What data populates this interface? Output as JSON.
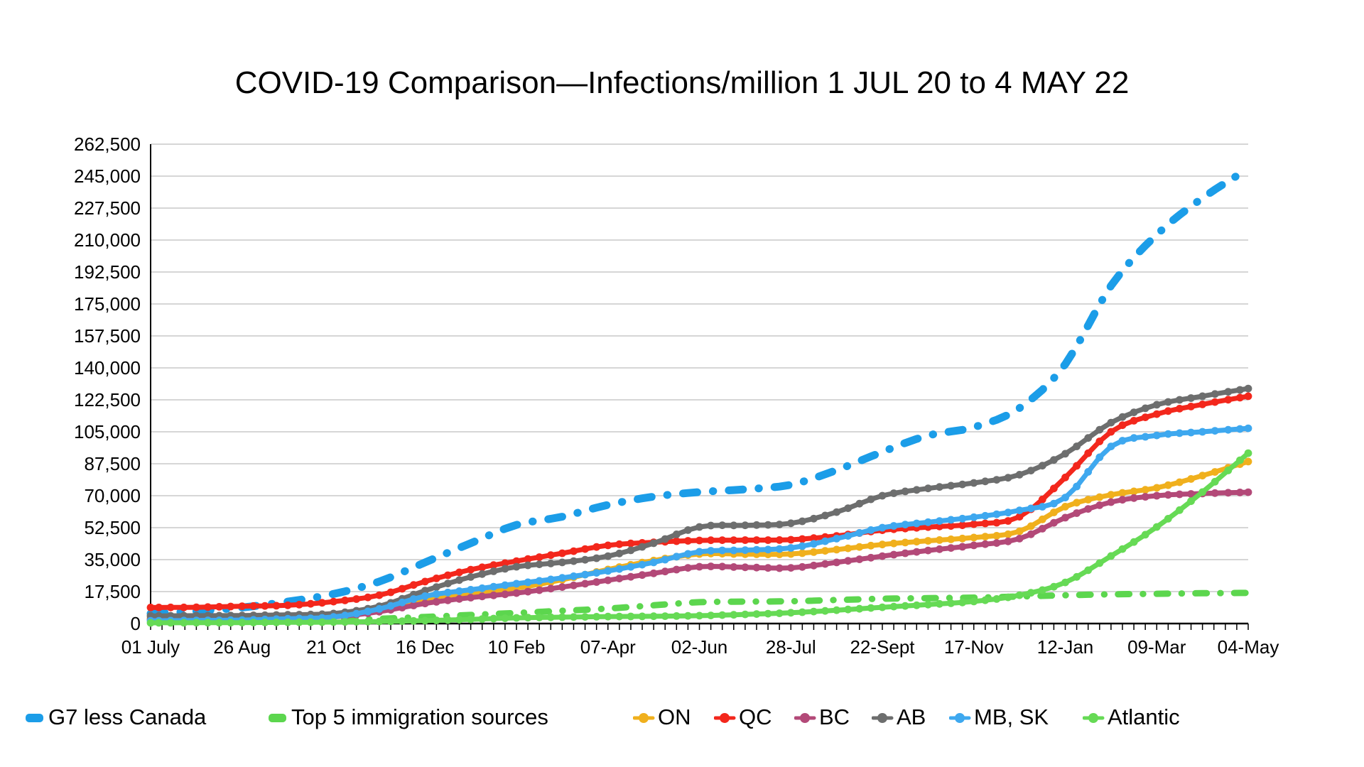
{
  "chart_data": {
    "type": "line",
    "title": "COVID-19 Comparison—Infections/million 1 JUL 20 to 4 MAY 22",
    "x_tick_labels": [
      "01 July",
      "26 Aug",
      "21 Oct",
      "16 Dec",
      "10 Feb",
      "07-Apr",
      "02-Jun",
      "28-Jul",
      "22-Sept",
      "17-Nov",
      "12-Jan",
      "09-Mar",
      "04-May"
    ],
    "x_range_note": "weekly data points, 8 weeks per labeled tick",
    "points_per_label_interval": 2,
    "y_axis": {
      "min": 0,
      "max": 262500,
      "step": 17500,
      "tick_labels": [
        "0",
        "17,500",
        "35,000",
        "52,500",
        "70,000",
        "87,500",
        "105,000",
        "122,500",
        "140,000",
        "157,500",
        "175,000",
        "192,500",
        "210,000",
        "227,500",
        "245,000",
        "262,500"
      ]
    },
    "grid": "horizontal-only",
    "legend_position": "bottom",
    "series": [
      {
        "id": "g7",
        "label": "G7 less Canada",
        "color": "#1B9DE8",
        "line_style": "dash-dot",
        "width": 11,
        "values": [
          5500,
          6800,
          8800,
          12000,
          16200,
          23000,
          33500,
          44000,
          54000,
          58500,
          65000,
          69500,
          72000,
          73500,
          76000,
          84000,
          94000,
          103000,
          107500,
          118000,
          142000,
          185000,
          213000,
          233000,
          249000
        ]
      },
      {
        "id": "top5",
        "label": "Top 5 immigration sources",
        "color": "#5CD64E",
        "line_style": "dash-dot",
        "width": 9,
        "values": [
          800,
          950,
          1100,
          1400,
          1800,
          2600,
          3600,
          4700,
          5800,
          7000,
          8200,
          10000,
          11700,
          12000,
          12200,
          12900,
          13600,
          13900,
          14200,
          14800,
          15500,
          16000,
          16300,
          16600,
          16800
        ]
      },
      {
        "id": "on",
        "label": "ON",
        "color": "#F0B01D",
        "line_style": "solid-markers",
        "width": 7,
        "values": [
          3000,
          3100,
          3300,
          3700,
          4200,
          7500,
          13600,
          16800,
          19400,
          24000,
          29600,
          34500,
          38100,
          38000,
          38100,
          40500,
          43300,
          45300,
          47100,
          50500,
          64000,
          70500,
          74300,
          81000,
          88700
        ]
      },
      {
        "id": "qc",
        "label": "QC",
        "color": "#F3271C",
        "line_style": "solid-markers",
        "width": 7,
        "values": [
          8800,
          8900,
          9500,
          10000,
          12000,
          15500,
          23000,
          29500,
          34200,
          38500,
          42800,
          44500,
          45500,
          45700,
          45900,
          48000,
          51100,
          52800,
          54400,
          58500,
          80000,
          105000,
          114700,
          120000,
          124500
        ]
      },
      {
        "id": "bc",
        "label": "BC",
        "color": "#B34978",
        "line_style": "solid-markers",
        "width": 7,
        "values": [
          2200,
          2300,
          2500,
          3000,
          3600,
          6500,
          11000,
          14200,
          16700,
          20000,
          23700,
          27500,
          31100,
          30800,
          30500,
          33500,
          36900,
          40000,
          42800,
          46500,
          58000,
          66500,
          70000,
          71200,
          71900
        ]
      },
      {
        "id": "ab",
        "label": "AB",
        "color": "#6D6E6E",
        "line_style": "solid-markers",
        "width": 7,
        "values": [
          4200,
          4300,
          4400,
          4800,
          5500,
          9500,
          18000,
          25500,
          31100,
          33500,
          36900,
          44000,
          52900,
          53800,
          54900,
          61000,
          70000,
          74000,
          77000,
          81500,
          93000,
          110000,
          119800,
          124500,
          128700
        ]
      },
      {
        "id": "mbsk",
        "label": "MB, SK",
        "color": "#3EA8EF",
        "line_style": "solid-markers",
        "width": 7,
        "values": [
          1500,
          1700,
          1900,
          2600,
          3600,
          8000,
          15000,
          18500,
          21800,
          25000,
          28800,
          33500,
          39300,
          40200,
          41400,
          46500,
          52500,
          55500,
          58200,
          62000,
          69000,
          97000,
          103000,
          105000,
          106900
        ]
      },
      {
        "id": "atlantic",
        "label": "Atlantic",
        "color": "#66DA55",
        "line_style": "solid-markers",
        "width": 7,
        "values": [
          400,
          450,
          500,
          650,
          800,
          1100,
          1600,
          2300,
          3100,
          3500,
          3800,
          4000,
          4300,
          5000,
          5900,
          7300,
          8900,
          10400,
          12100,
          15500,
          22500,
          37000,
          52900,
          72000,
          93300
        ]
      }
    ]
  }
}
